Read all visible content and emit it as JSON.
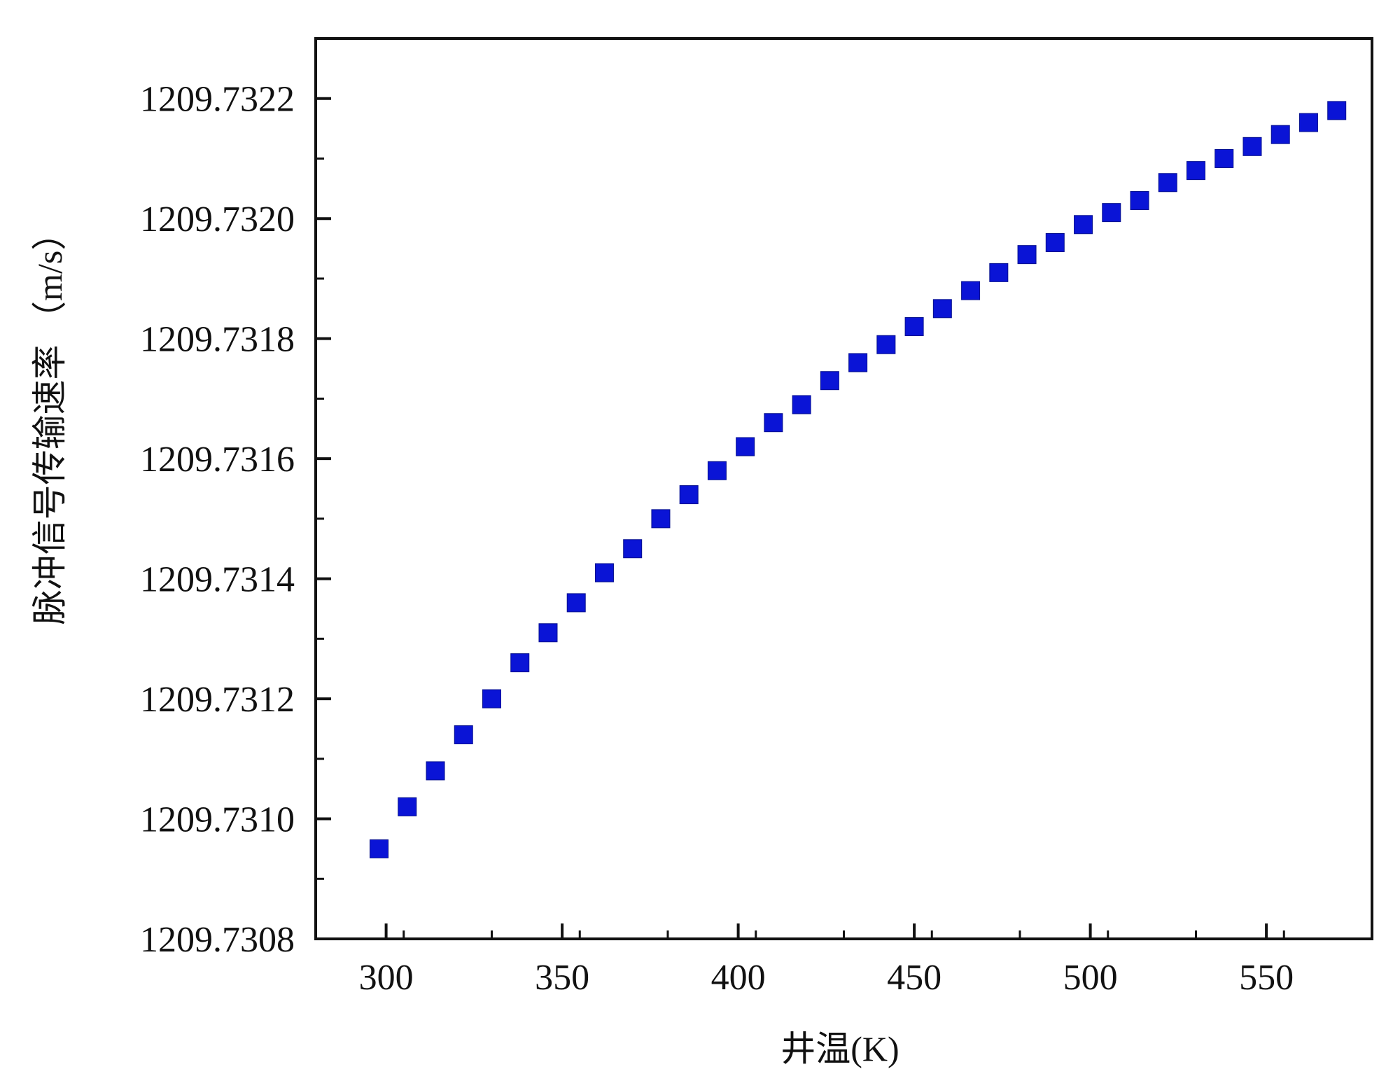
{
  "chart_data": {
    "type": "scatter",
    "title": "",
    "xlabel": "井温(K)",
    "ylabel": "脉冲信号传输速率 （m/s）",
    "xlim": [
      280,
      580
    ],
    "ylim": [
      1209.7308,
      1209.7323
    ],
    "x_ticks": [
      "300",
      "350",
      "400",
      "450",
      "500",
      "550"
    ],
    "y_ticks": [
      "1209.7308",
      "1209.7310",
      "1209.7312",
      "1209.7314",
      "1209.7316",
      "1209.7318",
      "1209.7320",
      "1209.7322"
    ],
    "grid": false,
    "legend": "none",
    "marker_color": "#0a14d6",
    "marker": "square",
    "series": [
      {
        "x": [
          298,
          306,
          314,
          322,
          330,
          338,
          346,
          354,
          362,
          370,
          378,
          386,
          394,
          402,
          410,
          418,
          426,
          434,
          442,
          450,
          458,
          466,
          474,
          482,
          490,
          498,
          506,
          514,
          522,
          530,
          538,
          546,
          554,
          562,
          570
        ],
        "y": [
          1209.73095,
          1209.73102,
          1209.73108,
          1209.73114,
          1209.7312,
          1209.73126,
          1209.73131,
          1209.73136,
          1209.73141,
          1209.73145,
          1209.7315,
          1209.73154,
          1209.73158,
          1209.73162,
          1209.73166,
          1209.73169,
          1209.73173,
          1209.73176,
          1209.73179,
          1209.73182,
          1209.73185,
          1209.73188,
          1209.73191,
          1209.73194,
          1209.73196,
          1209.73199,
          1209.73201,
          1209.73203,
          1209.73206,
          1209.73208,
          1209.7321,
          1209.73212,
          1209.73214,
          1209.73216,
          1209.73218
        ]
      }
    ]
  }
}
